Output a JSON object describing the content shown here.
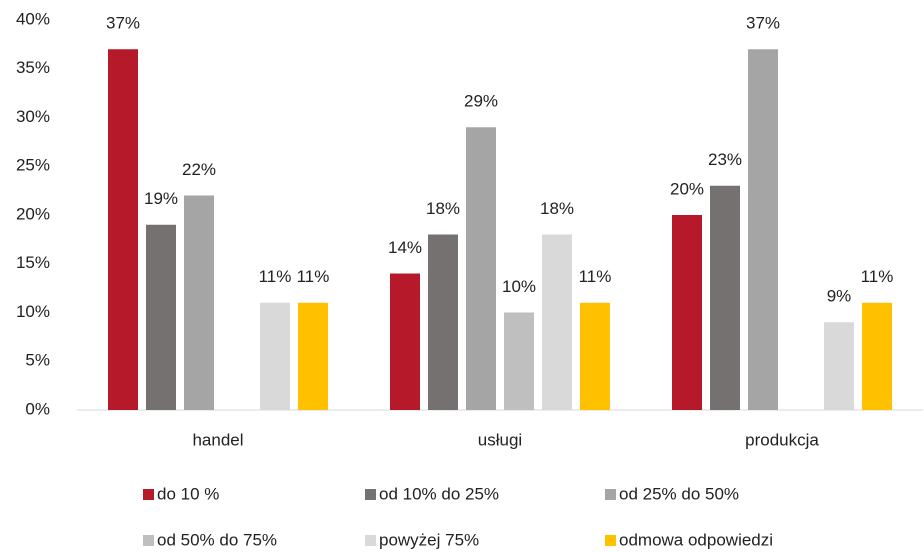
{
  "chart_data": {
    "type": "bar",
    "categories": [
      "handel",
      "usługi",
      "produkcja"
    ],
    "series": [
      {
        "name": "do 10 %",
        "color": "#b5192a",
        "values": [
          37,
          14,
          20
        ],
        "value_labels": [
          "37%",
          "14%",
          "20%"
        ]
      },
      {
        "name": "od 10% do 25%",
        "color": "#767171",
        "values": [
          19,
          18,
          23
        ],
        "value_labels": [
          "19%",
          "18%",
          "23%"
        ]
      },
      {
        "name": "od 25% do 50%",
        "color": "#a5a5a5",
        "values": [
          22,
          29,
          37
        ],
        "value_labels": [
          "22%",
          "29%",
          "37%"
        ]
      },
      {
        "name": "od 50% do 75%",
        "color": "#bfbfbf",
        "values": [
          null,
          10,
          null
        ],
        "value_labels": [
          null,
          "10%",
          null
        ]
      },
      {
        "name": "powyżej 75%",
        "color": "#d9d9d9",
        "values": [
          11,
          18,
          9
        ],
        "value_labels": [
          "11%",
          "18%",
          "9%"
        ]
      },
      {
        "name": "odmowa odpowiedzi",
        "color": "#ffc000",
        "values": [
          11,
          11,
          11
        ],
        "value_labels": [
          "11%",
          "11%",
          "11%"
        ]
      }
    ],
    "ylim": [
      0,
      40
    ],
    "yticks": [
      {
        "value": 0,
        "label": "0%"
      },
      {
        "value": 5,
        "label": "5%"
      },
      {
        "value": 10,
        "label": "10%"
      },
      {
        "value": 15,
        "label": "15%"
      },
      {
        "value": 20,
        "label": "20%"
      },
      {
        "value": 25,
        "label": "25%"
      },
      {
        "value": 30,
        "label": "30%"
      },
      {
        "value": 35,
        "label": "35%"
      },
      {
        "value": 40,
        "label": "40%"
      }
    ],
    "legend": "bottom"
  }
}
